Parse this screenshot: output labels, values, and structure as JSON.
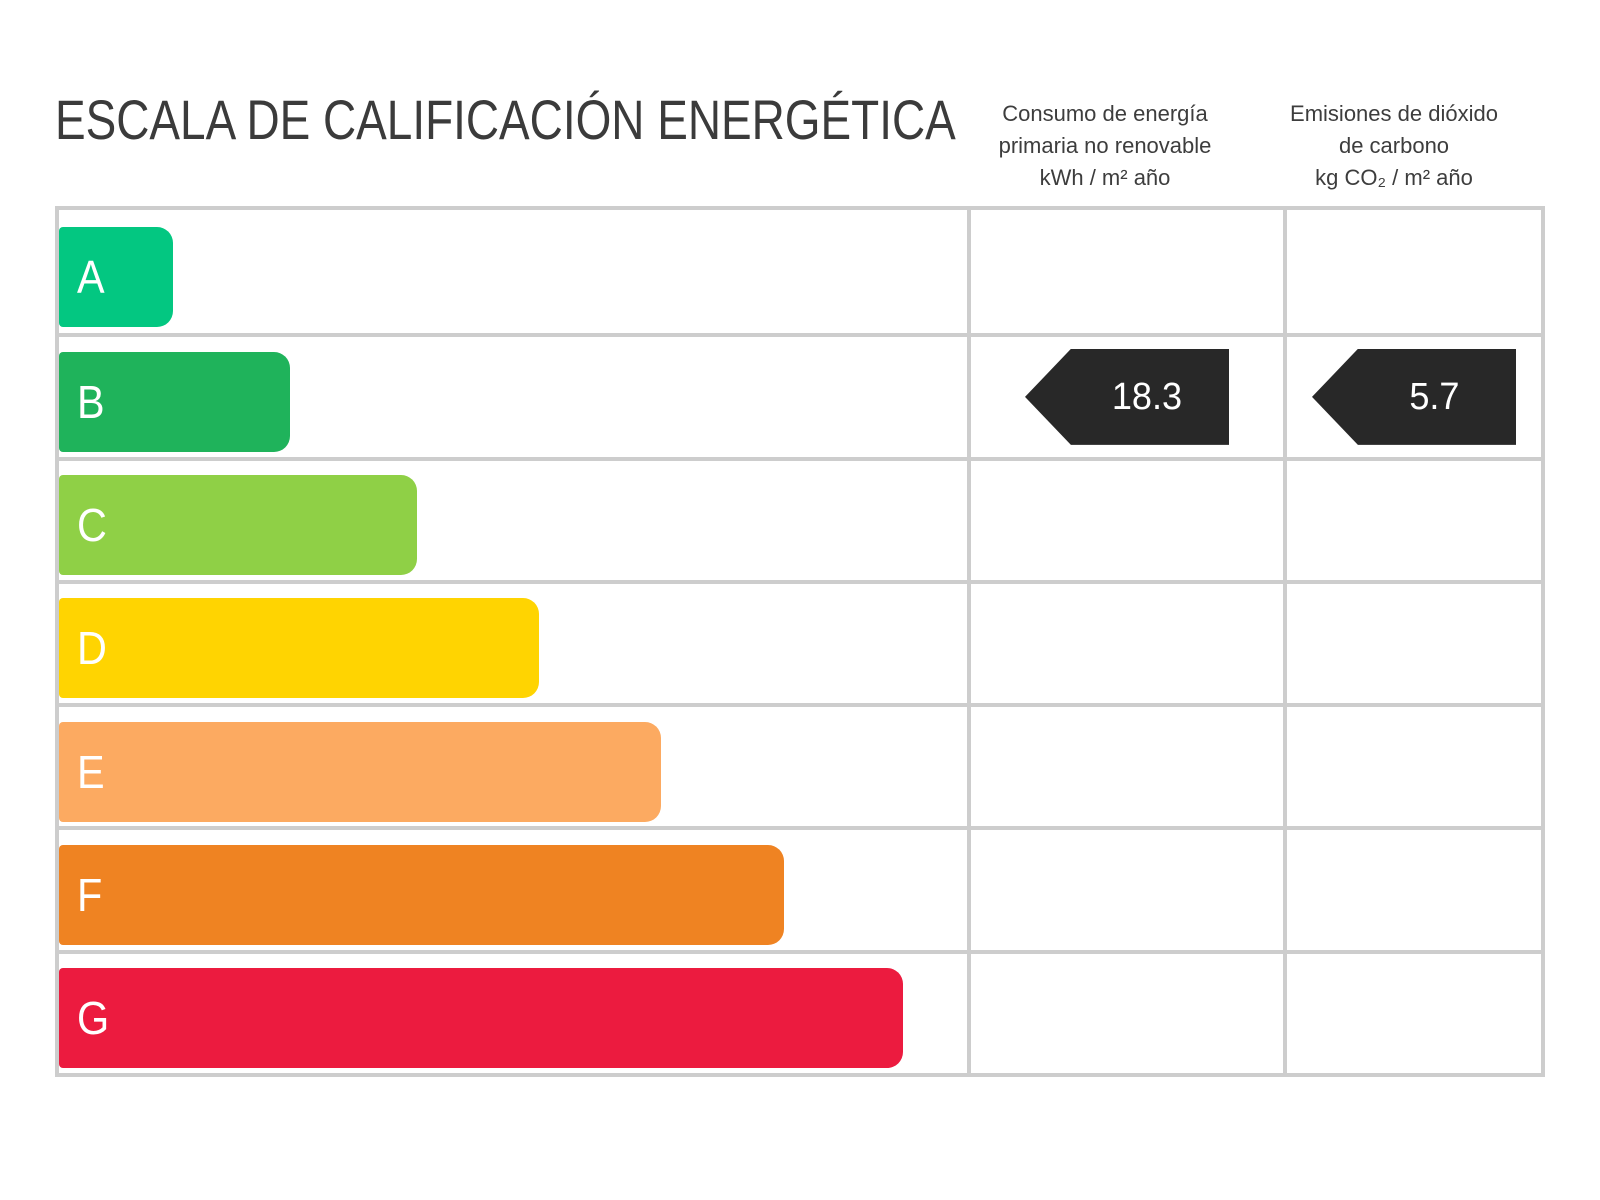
{
  "title": "ESCALA DE CALIFICACIÓN ENERGÉTICA",
  "columns": {
    "consumption": {
      "line1": "Consumo de energía",
      "line2": "primaria no renovable",
      "line3": "kWh / m² año"
    },
    "emissions": {
      "line1": "Emisiones de dióxido",
      "line2": "de carbono",
      "line3": "kg CO₂ / m² año"
    }
  },
  "scale": {
    "grades": [
      {
        "label": "A",
        "color": "#03C781",
        "width_pct": 12.5
      },
      {
        "label": "B",
        "color": "#1FB35B",
        "width_pct": 25.4
      },
      {
        "label": "C",
        "color": "#8FD046",
        "width_pct": 39.4
      },
      {
        "label": "D",
        "color": "#FFD401",
        "width_pct": 52.9
      },
      {
        "label": "E",
        "color": "#FCAA61",
        "width_pct": 66.3
      },
      {
        "label": "F",
        "color": "#EF8322",
        "width_pct": 79.8
      },
      {
        "label": "G",
        "color": "#EC1B3F",
        "width_pct": 92.9
      }
    ]
  },
  "rating": {
    "grade": "B",
    "consumption_value": "18.3",
    "emissions_value": "5.7",
    "arrow_color": "#282828"
  },
  "chart_data": {
    "type": "bar",
    "title": "ESCALA DE CALIFICACIÓN ENERGÉTICA",
    "categories": [
      "A",
      "B",
      "C",
      "D",
      "E",
      "F",
      "G"
    ],
    "values": [
      12.5,
      25.4,
      39.4,
      52.9,
      66.3,
      79.8,
      92.9
    ],
    "values_note": "bar lengths as percent of scale column width (ordinal A-G ladder)",
    "bar_colors": [
      "#03C781",
      "#1FB35B",
      "#8FD046",
      "#FFD401",
      "#FCAA61",
      "#EF8322",
      "#EC1B3F"
    ],
    "series": [
      {
        "name": "Consumo de energía primaria no renovable (kWh / m² año)",
        "grade": "B",
        "value": 18.3
      },
      {
        "name": "Emisiones de dióxido de carbono (kg CO₂ / m² año)",
        "grade": "B",
        "value": 5.7
      }
    ],
    "xlabel": "",
    "ylabel": "",
    "legend": false,
    "grid": true
  }
}
